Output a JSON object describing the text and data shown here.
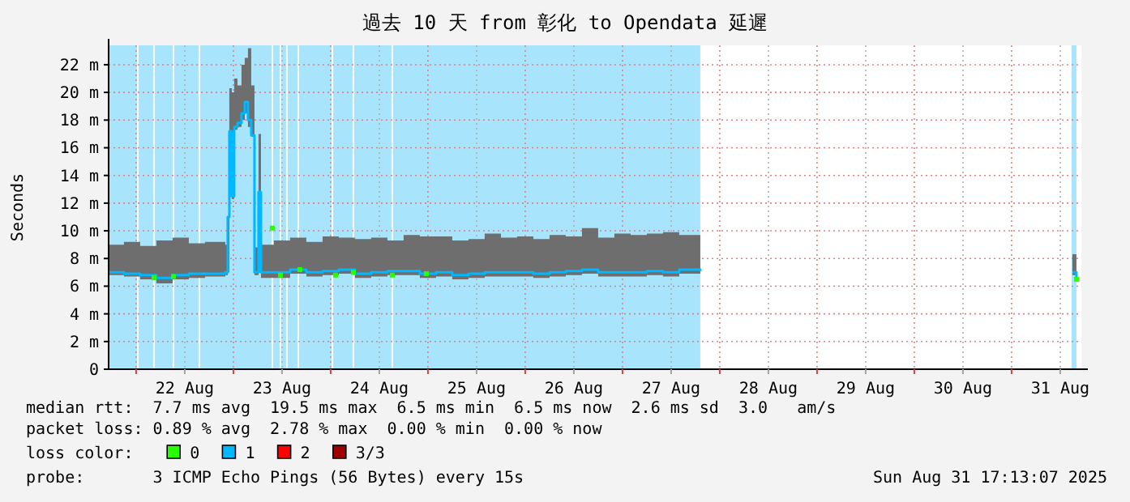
{
  "chart_data": {
    "type": "line",
    "title": "過去 10 天 from 彰化 to Opendata 延遲",
    "ylabel": "Seconds",
    "xlim": [
      "2025-08-21T17:13",
      "2025-08-31T17:13"
    ],
    "xticks": [
      {
        "value": "2025-08-22T00:00",
        "label": null
      },
      {
        "value": "2025-08-22T12:00",
        "label": "22 Aug"
      },
      {
        "value": "2025-08-23T00:00",
        "label": null
      },
      {
        "value": "2025-08-23T12:00",
        "label": "23 Aug"
      },
      {
        "value": "2025-08-24T00:00",
        "label": null
      },
      {
        "value": "2025-08-24T12:00",
        "label": "24 Aug"
      },
      {
        "value": "2025-08-25T00:00",
        "label": null
      },
      {
        "value": "2025-08-25T12:00",
        "label": "25 Aug"
      },
      {
        "value": "2025-08-26T00:00",
        "label": null
      },
      {
        "value": "2025-08-26T12:00",
        "label": "26 Aug"
      },
      {
        "value": "2025-08-27T00:00",
        "label": null
      },
      {
        "value": "2025-08-27T12:00",
        "label": "27 Aug"
      },
      {
        "value": "2025-08-28T00:00",
        "label": null
      },
      {
        "value": "2025-08-28T12:00",
        "label": "28 Aug"
      },
      {
        "value": "2025-08-29T00:00",
        "label": null
      },
      {
        "value": "2025-08-29T12:00",
        "label": "29 Aug"
      },
      {
        "value": "2025-08-30T00:00",
        "label": null
      },
      {
        "value": "2025-08-30T12:00",
        "label": "30 Aug"
      },
      {
        "value": "2025-08-31T00:00",
        "label": null
      },
      {
        "value": "2025-08-31T12:00",
        "label": "31 Aug"
      }
    ],
    "ylim": [
      0,
      23.4
    ],
    "yticks": [
      0,
      {
        "value": 2,
        "label": "2 m"
      },
      {
        "value": 4,
        "label": "4 m"
      },
      {
        "value": 6,
        "label": "6 m"
      },
      {
        "value": 8,
        "label": "8 m"
      },
      {
        "value": 10,
        "label": "10 m"
      },
      {
        "value": 12,
        "label": "12 m"
      },
      {
        "value": 14,
        "label": "14 m"
      },
      {
        "value": 16,
        "label": "16 m"
      },
      {
        "value": 18,
        "label": "18 m"
      },
      {
        "value": 20,
        "label": "20 m"
      },
      {
        "value": 22,
        "label": "22 m"
      }
    ],
    "grid": true,
    "legend": "bottom",
    "legend_title": "loss color:",
    "series": [
      {
        "name": "0",
        "type": "scatter",
        "color": "#26ff00",
        "x": [
          "2025-08-22T04:24",
          "2025-08-22T09:12",
          "2025-08-23T09:36",
          "2025-08-23T11:36",
          "2025-08-23T16:24",
          "2025-08-24T01:12",
          "2025-08-24T05:36",
          "2025-08-24T15:12",
          "2025-08-24T23:36",
          "2025-08-31T16:00"
        ],
        "values": [
          6.6,
          6.7,
          10.2,
          6.8,
          7.2,
          6.8,
          7,
          6.8,
          6.9,
          6.5
        ]
      },
      {
        "name": "1",
        "color": "#00b8ff",
        "x": [
          "2025-08-21T17:13",
          "2025-08-21T21:00",
          "2025-08-22T01:00",
          "2025-08-22T05:00",
          "2025-08-22T09:00",
          "2025-08-22T13:00",
          "2025-08-22T17:00",
          "2025-08-22T22:00",
          "2025-08-22T22:36",
          "2025-08-22T23:00",
          "2025-08-22T23:36",
          "2025-08-23T00:12",
          "2025-08-23T01:00",
          "2025-08-23T02:00",
          "2025-08-23T02:48",
          "2025-08-23T03:36",
          "2025-08-23T04:24",
          "2025-08-23T05:12",
          "2025-08-23T06:12",
          "2025-08-23T06:48",
          "2025-08-23T10:00",
          "2025-08-23T14:00",
          "2025-08-23T18:00",
          "2025-08-23T22:00",
          "2025-08-24T02:00",
          "2025-08-24T06:00",
          "2025-08-24T10:00",
          "2025-08-24T14:00",
          "2025-08-24T18:00",
          "2025-08-24T22:00",
          "2025-08-25T02:00",
          "2025-08-25T06:00",
          "2025-08-25T10:00",
          "2025-08-25T14:00",
          "2025-08-25T18:00",
          "2025-08-25T22:00",
          "2025-08-26T02:00",
          "2025-08-26T06:00",
          "2025-08-26T10:00",
          "2025-08-26T14:00",
          "2025-08-26T18:00",
          "2025-08-26T22:00",
          "2025-08-27T02:00",
          "2025-08-27T06:00",
          "2025-08-27T10:00",
          "2025-08-27T14:00",
          "2025-08-27T19:12",
          "2025-08-29T12:00",
          "2025-08-31T15:00",
          "2025-08-31T16:00"
        ],
        "values": [
          7,
          6.9,
          6.8,
          6.6,
          6.8,
          6.9,
          6.9,
          7,
          11,
          17.2,
          12.5,
          17.5,
          17.8,
          18.5,
          19.3,
          18,
          16.9,
          7,
          12.8,
          7,
          7,
          7.2,
          7,
          7.1,
          7.2,
          6.9,
          7,
          7.1,
          7.1,
          6.9,
          7,
          6.8,
          6.9,
          7,
          7,
          7,
          6.9,
          7,
          7.1,
          7.2,
          7,
          7,
          7,
          7.1,
          7,
          7.2,
          7.1,
          null,
          7,
          6.5
        ],
        "lower": [
          6.8,
          6.7,
          6.5,
          6.2,
          6.5,
          6.6,
          6.7,
          6.8,
          7,
          17,
          12.3,
          17.3,
          17.5,
          18,
          18.5,
          17.5,
          16.8,
          6.8,
          12.5,
          6.6,
          6.6,
          6.9,
          6.7,
          6.8,
          6.9,
          6.6,
          6.7,
          6.8,
          6.8,
          6.6,
          6.7,
          6.5,
          6.6,
          6.7,
          6.7,
          6.7,
          6.6,
          6.7,
          6.8,
          6.9,
          6.7,
          6.7,
          6.7,
          6.8,
          6.7,
          6.9,
          6.8,
          null,
          6.8,
          6.1
        ],
        "upper": [
          9,
          9.2,
          8.9,
          9.3,
          9.5,
          9.1,
          9.2,
          9,
          11,
          20.3,
          20,
          21,
          20.5,
          22,
          22.5,
          23.2,
          20.5,
          8.8,
          17,
          9,
          9.3,
          9.5,
          9.2,
          9.6,
          9.5,
          9.4,
          9.5,
          9.3,
          9.7,
          9.6,
          9.6,
          9.3,
          9.4,
          9.8,
          9.5,
          9.6,
          9.4,
          9.7,
          9.6,
          10.2,
          9.5,
          9.8,
          9.7,
          9.8,
          9.9,
          9.7,
          9.6,
          null,
          8.3,
          8.1
        ]
      },
      {
        "name": "2",
        "type": "line",
        "color": "#ff0000"
      },
      {
        "name": "3/3",
        "type": "line",
        "color": "#a00000"
      }
    ],
    "bands": [
      {
        "axis": "x",
        "from": "2025-08-21T17:13",
        "to": "2025-08-22T00:12",
        "color": "#a8e4fc"
      },
      {
        "axis": "x",
        "from": "2025-08-22T00:36",
        "to": "2025-08-22T04:12",
        "color": "#a8e4fc"
      },
      {
        "axis": "x",
        "from": "2025-08-22T04:36",
        "to": "2025-08-22T09:00",
        "color": "#a8e4fc"
      },
      {
        "axis": "x",
        "from": "2025-08-22T09:24",
        "to": "2025-08-22T15:24",
        "color": "#a8e4fc"
      },
      {
        "axis": "x",
        "from": "2025-08-22T15:48",
        "to": "2025-08-23T09:24",
        "color": "#a8e4fc"
      },
      {
        "axis": "x",
        "from": "2025-08-23T09:48",
        "to": "2025-08-23T11:24",
        "color": "#a8e4fc"
      },
      {
        "axis": "x",
        "from": "2025-08-23T11:48",
        "to": "2025-08-23T13:00",
        "color": "#a8e4fc"
      },
      {
        "axis": "x",
        "from": "2025-08-23T13:24",
        "to": "2025-08-23T15:48",
        "color": "#a8e4fc"
      },
      {
        "axis": "x",
        "from": "2025-08-23T16:12",
        "to": "2025-08-24T00:12",
        "color": "#a8e4fc"
      },
      {
        "axis": "x",
        "from": "2025-08-24T00:36",
        "to": "2025-08-24T05:24",
        "color": "#a8e4fc"
      },
      {
        "axis": "x",
        "from": "2025-08-24T05:48",
        "to": "2025-08-24T15:00",
        "color": "#a8e4fc"
      },
      {
        "axis": "x",
        "from": "2025-08-24T15:24",
        "to": "2025-08-27T19:12",
        "color": "#a8e4fc"
      },
      {
        "axis": "x",
        "from": "2025-08-31T14:48",
        "to": "2025-08-31T16:00",
        "color": "#a8e4fc"
      }
    ],
    "annotations": [
      "median rtt:  7.7 ms avg  19.5 ms max  6.5 ms min  6.5 ms now  2.6 ms sd  3.0   am/s",
      "packet loss: 0.89 % avg  2.78 % max  0.00 % min  0.00 % now",
      "probe:       3 ICMP Echo Pings (56 Bytes) every 15s",
      "Sun Aug 31 17:13:07 2025"
    ]
  }
}
